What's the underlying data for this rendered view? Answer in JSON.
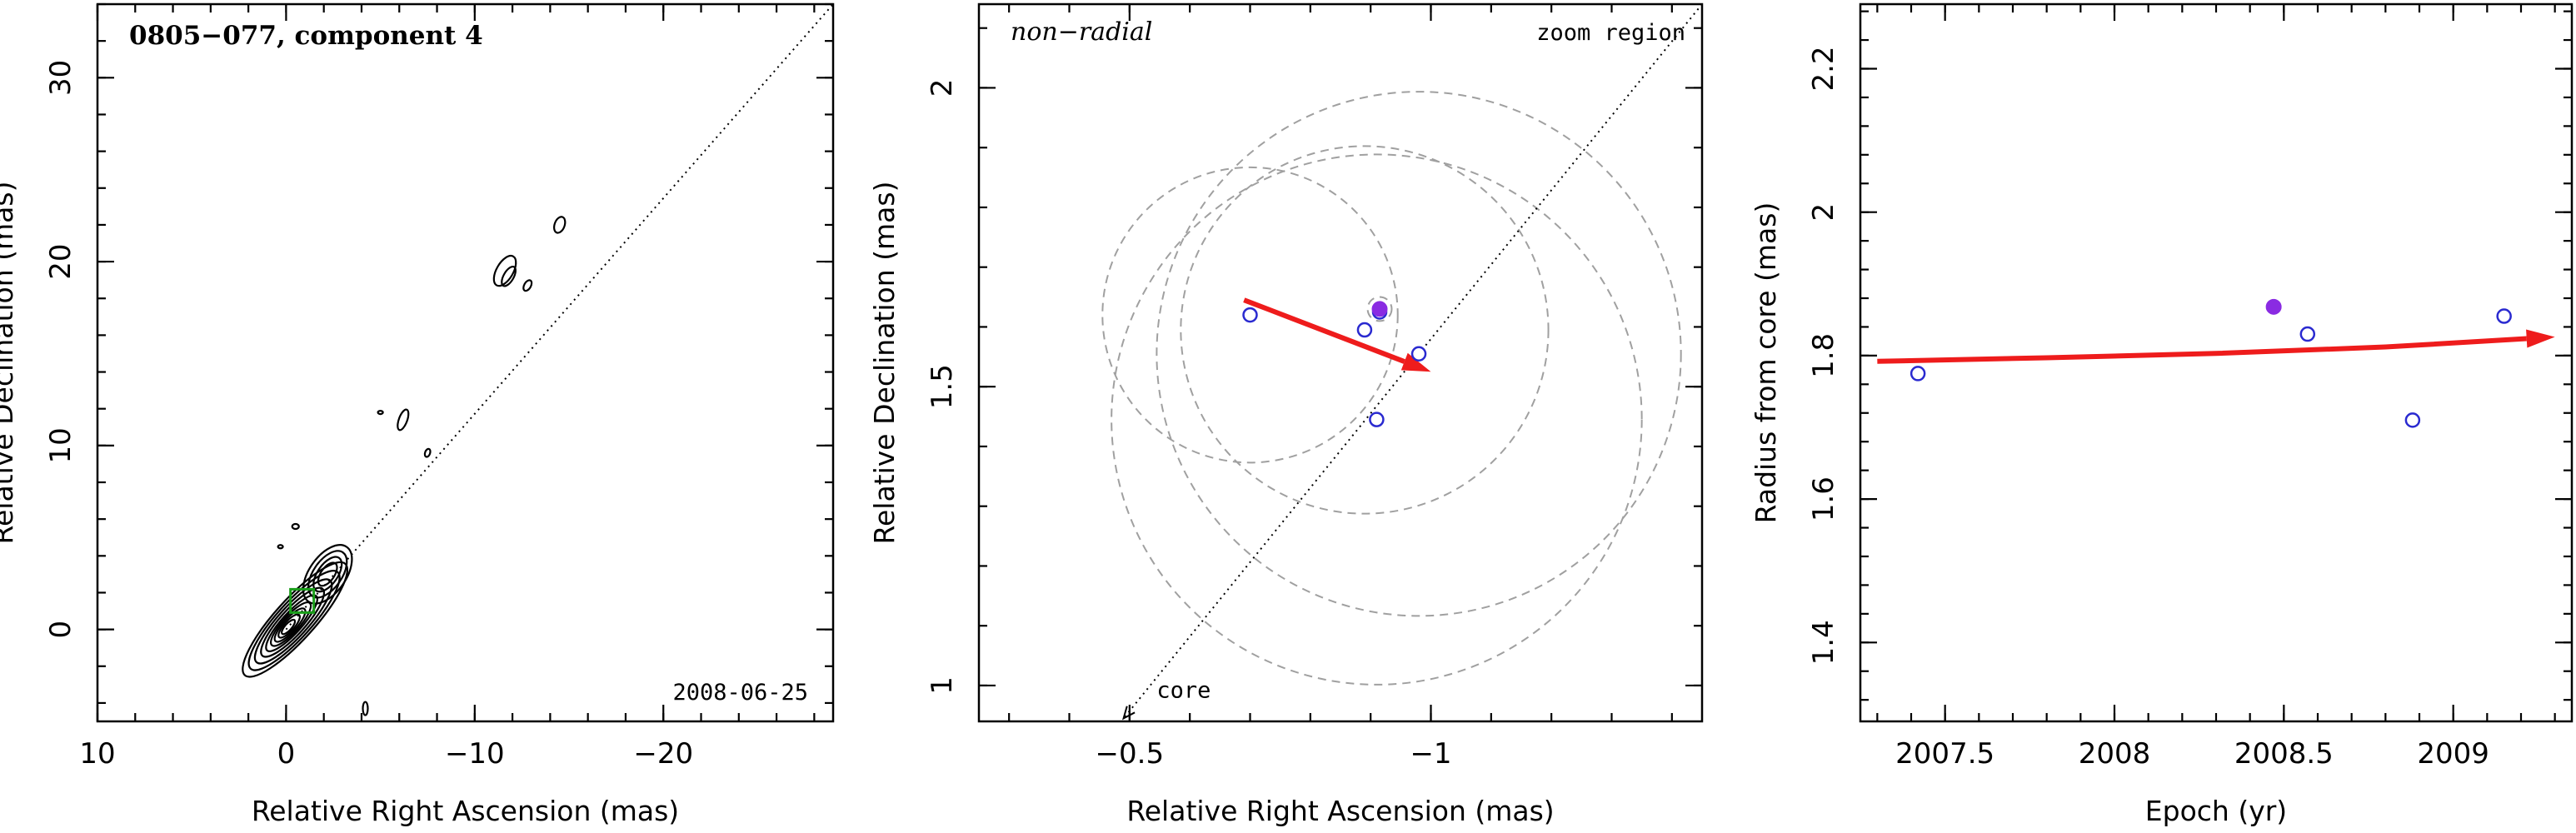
{
  "chart_data": [
    {
      "type": "contour",
      "title": "0805−077, component 4",
      "annotation_date": "2008-06-25",
      "xlabel": "Relative Right Ascension (mas)",
      "ylabel": "Relative Declination (mas)",
      "xlim": [
        10,
        -29
      ],
      "ylim": [
        -5,
        34
      ],
      "xticks": [
        10,
        0,
        -10,
        -20
      ],
      "xtick_labels": [
        "10",
        "0",
        "−10",
        "−20"
      ],
      "yticks": [
        0,
        10,
        20,
        30
      ],
      "ytick_labels": [
        "0",
        "10",
        "20",
        "30"
      ],
      "jet_axis": [
        [
          0,
          0
        ],
        [
          -29,
          34
        ]
      ],
      "component_box": {
        "x": -0.85,
        "y": 1.55
      }
    },
    {
      "type": "scatter",
      "label_topleft": "non−radial",
      "label_topright": "zoom region",
      "label_core": "core",
      "xlabel": "Relative Right Ascension (mas)",
      "ylabel": "Relative Declination (mas)",
      "xlim": [
        -0.25,
        -1.45
      ],
      "ylim": [
        0.94,
        2.14
      ],
      "xticks": [
        -0.5,
        -1
      ],
      "xtick_labels": [
        "−0.5",
        "−1"
      ],
      "yticks": [
        1,
        1.5,
        2
      ],
      "ytick_labels": [
        "1",
        "1.5",
        "2"
      ],
      "points_open": [
        {
          "x": -0.7,
          "y": 1.62
        },
        {
          "x": -0.89,
          "y": 1.595
        },
        {
          "x": -0.91,
          "y": 1.445
        },
        {
          "x": -0.98,
          "y": 1.555
        },
        {
          "x": -0.915,
          "y": 1.625
        }
      ],
      "point_filled": {
        "x": -0.915,
        "y": 1.63
      },
      "error_circles": [
        {
          "x": -0.7,
          "y": 1.62,
          "r": 0.245
        },
        {
          "x": -0.89,
          "y": 1.595,
          "r": 0.305
        },
        {
          "x": -0.91,
          "y": 1.445,
          "r": 0.44
        },
        {
          "x": -0.98,
          "y": 1.555,
          "r": 0.435
        },
        {
          "x": -0.915,
          "y": 1.63,
          "r": 0.02
        }
      ],
      "motion_vector": {
        "from": [
          -0.69,
          1.645
        ],
        "to": [
          -1.0,
          1.525
        ]
      },
      "core_direction": {
        "from": [
          -1.45,
          2.14
        ],
        "to": [
          -0.49,
          0.945
        ]
      }
    },
    {
      "type": "scatter",
      "xlabel": "Epoch (yr)",
      "ylabel": "Radius from core (mas)",
      "xlim": [
        2007.25,
        2009.35
      ],
      "ylim": [
        1.29,
        2.29
      ],
      "xticks": [
        2007.5,
        2008,
        2008.5,
        2009
      ],
      "xtick_labels": [
        "2007.5",
        "2008",
        "2008.5",
        "2009"
      ],
      "yticks": [
        1.4,
        1.6,
        1.8,
        2,
        2.2
      ],
      "ytick_labels": [
        "1.4",
        "1.6",
        "1.8",
        "2",
        "2.2"
      ],
      "points_open": [
        {
          "x": 2007.42,
          "y": 1.775
        },
        {
          "x": 2008.57,
          "y": 1.83
        },
        {
          "x": 2008.88,
          "y": 1.71
        },
        {
          "x": 2009.15,
          "y": 1.855
        }
      ],
      "point_filled": {
        "x": 2008.47,
        "y": 1.868
      },
      "fit_curve": [
        [
          2007.3,
          1.792
        ],
        [
          2007.8,
          1.797
        ],
        [
          2008.3,
          1.803
        ],
        [
          2008.8,
          1.812
        ],
        [
          2009.3,
          1.826
        ]
      ]
    }
  ]
}
